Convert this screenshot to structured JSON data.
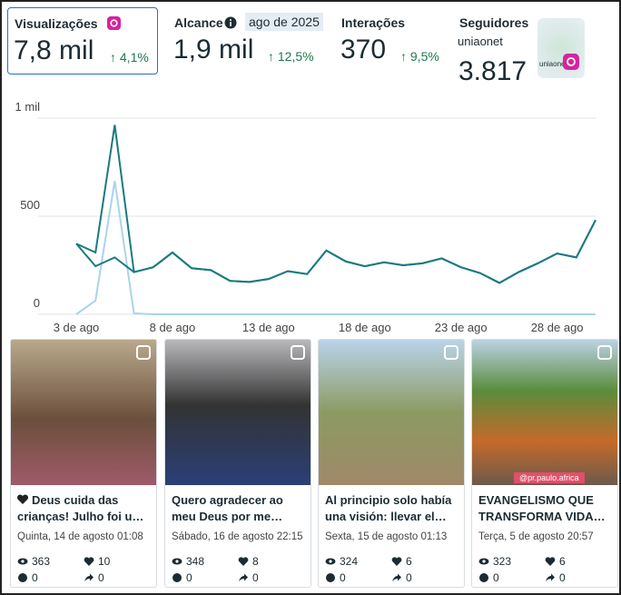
{
  "metrics": [
    {
      "label": "Visualizações",
      "value": "7,8 mil",
      "change": "4,1%"
    },
    {
      "label": "Alcance",
      "value": "1,9 mil",
      "change": "12,5%",
      "tooltip": "ago de 2025"
    },
    {
      "label": "Interações",
      "value": "370",
      "change": "9,5%"
    },
    {
      "label": "Seguidores",
      "account": "uniaonet",
      "value": "3.817",
      "avatar_text": "uniaonet"
    }
  ],
  "chart_data": {
    "type": "line",
    "categories": [
      "3 de ago",
      null,
      null,
      null,
      null,
      "8 de ago",
      null,
      null,
      null,
      null,
      "13 de ago",
      null,
      null,
      null,
      null,
      "18 de ago",
      null,
      null,
      null,
      null,
      "23 de ago",
      null,
      null,
      null,
      null,
      "28 de ago",
      null,
      null
    ],
    "series": [
      {
        "color": "#1b7a80",
        "values": [
          360,
          315,
          965,
          215,
          240,
          315,
          235,
          225,
          170,
          165,
          180,
          220,
          205,
          325,
          270,
          245,
          265,
          250,
          260,
          285,
          240,
          210,
          160,
          215,
          260,
          310,
          290,
          480
        ]
      },
      {
        "color": "#1b7a80",
        "values": [
          360,
          245,
          290,
          215,
          240,
          315,
          235,
          225,
          170,
          165,
          180,
          220,
          205,
          325,
          270,
          245,
          265,
          250,
          260,
          285,
          240,
          210,
          160,
          215,
          260,
          310,
          290,
          480
        ]
      },
      {
        "color": "#a9d4ec",
        "values": [
          0,
          70,
          680,
          5,
          0,
          0,
          0,
          0,
          0,
          0,
          0,
          0,
          0,
          0,
          0,
          0,
          0,
          0,
          0,
          0,
          0,
          0,
          0,
          0,
          0,
          0,
          0,
          0
        ]
      }
    ],
    "ylim": [
      0,
      1000
    ],
    "yticks": [
      0,
      500,
      {
        "value": 1000,
        "label": "1 mil"
      }
    ],
    "grid": true
  },
  "posts": [
    {
      "title": "Deus cuida das crianças! Julho foi u…",
      "date": "Quinta, 14 de agosto 01:08",
      "views": "363",
      "likes": "10",
      "comments": "0",
      "shares": "0"
    },
    {
      "title": "Quero agradecer ao meu Deus por me…",
      "date": "Sábado, 16 de agosto 22:15",
      "views": "348",
      "likes": "8",
      "comments": "0",
      "shares": "0"
    },
    {
      "title": "Al principio solo había una visión: llevar el…",
      "date": "Sexta, 15 de agosto 01:13",
      "views": "324",
      "likes": "6",
      "comments": "0",
      "shares": "0"
    },
    {
      "title": "EVANGELISMO QUE TRANSFORMA VIDA…",
      "date": "Terça, 5 de agosto 20:57",
      "views": "323",
      "likes": "6",
      "comments": "0",
      "shares": "0",
      "watermark": "@pr.paulo.africa"
    }
  ]
}
